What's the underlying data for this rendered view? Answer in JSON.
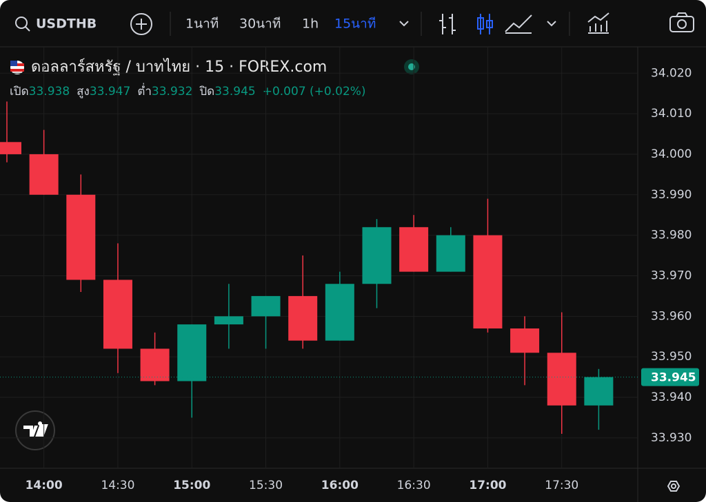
{
  "toolbar": {
    "symbol": "USDTHB",
    "intervals": [
      "1นาที",
      "30นาที",
      "1h",
      "15นาที"
    ]
  },
  "chart_data": {
    "type": "candlestick",
    "title": "ดอลลาร์สหรัฐ / บาทไทย · 15 · FOREX.com",
    "ohlc_labels": [
      "เปิด",
      "สูง",
      "ต่ำ",
      "ปิด"
    ],
    "change_label": "+0.007 (+0.02%)",
    "categories": [
      null,
      "14:00",
      null,
      "14:30",
      null,
      "15:00",
      null,
      "15:30",
      null,
      "16:00",
      null,
      "16:30",
      null,
      "17:00",
      null,
      "17:30",
      null
    ],
    "open": [
      34.003,
      34.0,
      33.99,
      33.969,
      33.952,
      33.944,
      33.958,
      33.96,
      33.965,
      33.954,
      33.968,
      33.982,
      33.971,
      33.98,
      33.957,
      33.951,
      33.938
    ],
    "high": [
      34.013,
      34.006,
      33.995,
      33.978,
      33.956,
      33.958,
      33.968,
      33.965,
      33.975,
      33.971,
      33.984,
      33.985,
      33.982,
      33.989,
      33.96,
      33.961,
      33.947
    ],
    "low": [
      33.998,
      33.99,
      33.966,
      33.946,
      33.943,
      33.935,
      33.952,
      33.952,
      33.952,
      33.954,
      33.962,
      33.971,
      33.971,
      33.956,
      33.943,
      33.931,
      33.932
    ],
    "close": [
      34.0,
      33.99,
      33.969,
      33.952,
      33.944,
      33.958,
      33.96,
      33.965,
      33.954,
      33.968,
      33.982,
      33.971,
      33.98,
      33.957,
      33.951,
      33.938,
      33.945
    ],
    "up_color": "#089981",
    "down_color": "#f23645",
    "ylim": [
      33.9225,
      34.0265
    ],
    "yticks": [
      {
        "value": 33.93,
        "label": "33.930"
      },
      {
        "value": 33.94,
        "label": "33.940"
      },
      {
        "value": 33.95,
        "label": "33.950"
      },
      {
        "value": 33.96,
        "label": "33.960"
      },
      {
        "value": 33.97,
        "label": "33.970"
      },
      {
        "value": 33.98,
        "label": "33.980"
      },
      {
        "value": 33.99,
        "label": "33.990"
      },
      {
        "value": 34.0,
        "label": "34.000"
      },
      {
        "value": 34.01,
        "label": "34.010"
      },
      {
        "value": 34.02,
        "label": "34.020"
      }
    ],
    "grid": true,
    "last_price_line": true
  }
}
